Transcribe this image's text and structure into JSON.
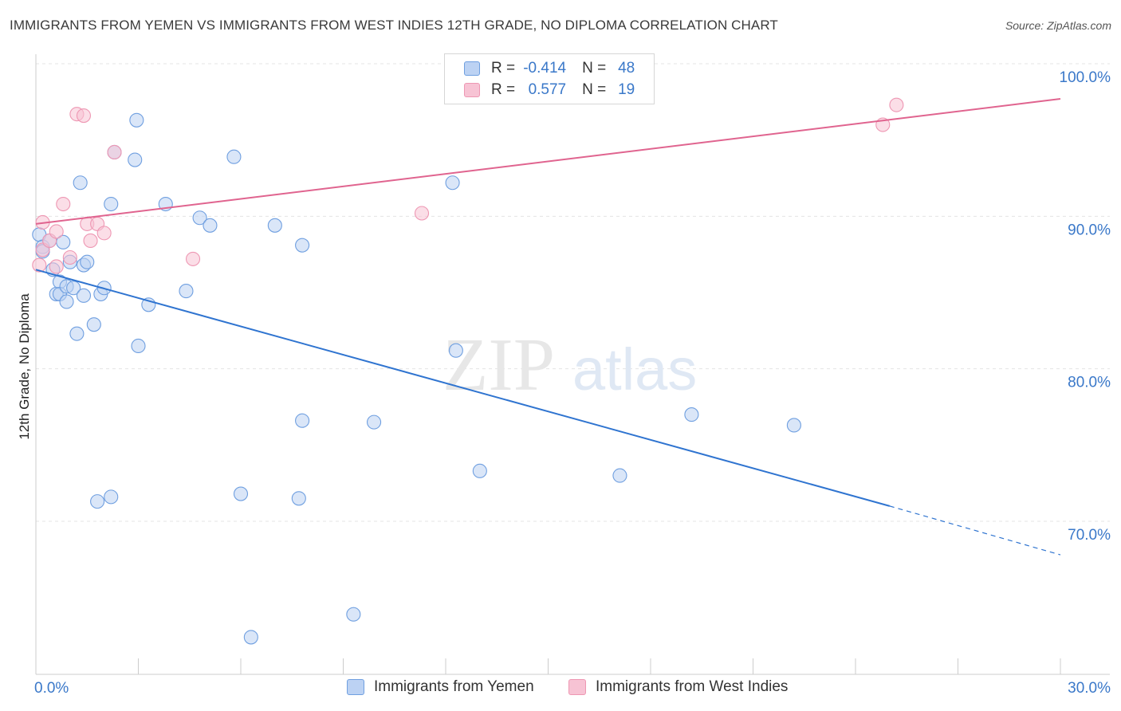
{
  "title": "IMMIGRANTS FROM YEMEN VS IMMIGRANTS FROM WEST INDIES 12TH GRADE, NO DIPLOMA CORRELATION CHART",
  "source": "Source: ZipAtlas.com",
  "watermark": {
    "zip": "ZIP",
    "atlas": "atlas"
  },
  "legend": {
    "r_label": "R =",
    "n_label": "N =",
    "rows": [
      {
        "r": "-0.414",
        "n": "48",
        "color": "#6f9fe0"
      },
      {
        "r": "0.577",
        "n": "19",
        "color": "#ee97b3"
      }
    ]
  },
  "bottom_legend": [
    "Immigrants from Yemen",
    "Immigrants from West Indies"
  ],
  "chart_data": {
    "type": "scatter",
    "title": "IMMIGRANTS FROM YEMEN VS IMMIGRANTS FROM WEST INDIES 12TH GRADE, NO DIPLOMA CORRELATION CHART",
    "xlabel": "",
    "ylabel": "12th Grade, No Diploma",
    "xlim": [
      0,
      30
    ],
    "ylim": [
      60,
      100
    ],
    "x_tick_labels": [
      "0.0%",
      "30.0%"
    ],
    "y_ticks": [
      {
        "value": 100,
        "label": "100.0%"
      },
      {
        "value": 90,
        "label": "90.0%"
      },
      {
        "value": 80,
        "label": "80.0%"
      },
      {
        "value": 70,
        "label": "70.0%"
      }
    ],
    "series": [
      {
        "name": "Immigrants from Yemen",
        "color": "#6f9fe0",
        "fill": "#bcd2f3",
        "points": [
          [
            0.1,
            88.8
          ],
          [
            0.2,
            88.0
          ],
          [
            0.2,
            87.7
          ],
          [
            0.4,
            88.4
          ],
          [
            0.5,
            86.5
          ],
          [
            0.6,
            84.9
          ],
          [
            0.7,
            85.7
          ],
          [
            0.7,
            84.9
          ],
          [
            0.8,
            88.3
          ],
          [
            0.9,
            85.4
          ],
          [
            0.9,
            84.4
          ],
          [
            1.0,
            87.0
          ],
          [
            1.1,
            85.3
          ],
          [
            1.2,
            82.3
          ],
          [
            1.3,
            92.2
          ],
          [
            1.4,
            84.8
          ],
          [
            1.4,
            86.8
          ],
          [
            1.5,
            87.0
          ],
          [
            1.7,
            82.9
          ],
          [
            1.9,
            84.9
          ],
          [
            2.0,
            85.3
          ],
          [
            2.2,
            90.8
          ],
          [
            2.3,
            94.2
          ],
          [
            2.9,
            93.7
          ],
          [
            2.95,
            96.3
          ],
          [
            3.0,
            81.5
          ],
          [
            3.3,
            84.2
          ],
          [
            3.8,
            90.8
          ],
          [
            4.4,
            85.1
          ],
          [
            4.8,
            89.9
          ],
          [
            5.1,
            89.4
          ],
          [
            5.8,
            93.9
          ],
          [
            7.0,
            89.4
          ],
          [
            7.8,
            88.1
          ],
          [
            7.8,
            76.6
          ],
          [
            9.9,
            76.5
          ],
          [
            12.2,
            92.2
          ],
          [
            12.3,
            81.2
          ],
          [
            13.0,
            73.3
          ],
          [
            17.1,
            73.0
          ],
          [
            19.2,
            77.0
          ],
          [
            22.2,
            76.3
          ],
          [
            1.8,
            71.3
          ],
          [
            2.2,
            71.6
          ],
          [
            6.0,
            71.8
          ],
          [
            7.7,
            71.5
          ],
          [
            6.3,
            62.4
          ],
          [
            9.3,
            63.9
          ]
        ]
      },
      {
        "name": "Immigrants from West Indies",
        "color": "#ee97b3",
        "fill": "#f7c3d4",
        "points": [
          [
            0.2,
            89.6
          ],
          [
            0.2,
            87.8
          ],
          [
            0.4,
            88.4
          ],
          [
            0.6,
            86.7
          ],
          [
            0.6,
            89.0
          ],
          [
            0.8,
            90.8
          ],
          [
            1.0,
            87.3
          ],
          [
            1.2,
            96.7
          ],
          [
            1.5,
            89.5
          ],
          [
            1.4,
            96.6
          ],
          [
            1.6,
            88.4
          ],
          [
            1.8,
            89.5
          ],
          [
            2.0,
            88.9
          ],
          [
            2.3,
            94.2
          ],
          [
            4.6,
            87.2
          ],
          [
            11.3,
            90.2
          ],
          [
            24.8,
            96.0
          ],
          [
            25.2,
            97.3
          ],
          [
            0.1,
            86.8
          ]
        ]
      }
    ],
    "trend_lines": [
      {
        "series": "Immigrants from Yemen",
        "x_start": 0,
        "y_start": 86.5,
        "x_end": 25.0,
        "y_end": 71.0,
        "dashed_to_x": 30,
        "dashed_to_y": 67.8
      },
      {
        "series": "Immigrants from West Indies",
        "x_start": 0,
        "y_start": 89.5,
        "x_end": 30,
        "y_end": 97.7
      }
    ],
    "grid": true,
    "legend_position": "top-center"
  }
}
